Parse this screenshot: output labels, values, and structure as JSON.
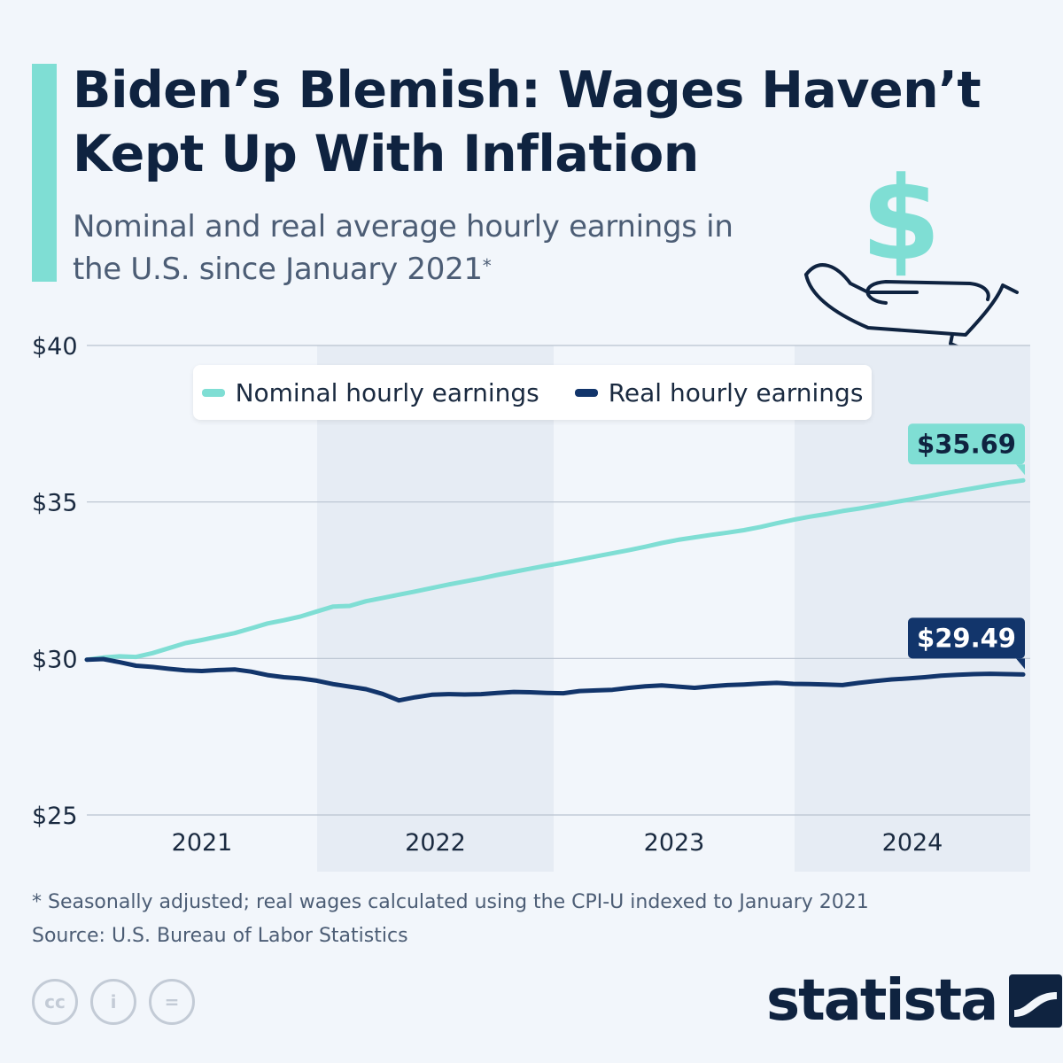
{
  "header": {
    "title": "Biden’s Blemish: Wages Haven’t Kept Up With Inflation",
    "subtitle": "Nominal and real average hourly earnings in the U.S. since January 2021",
    "subtitle_mark": "*"
  },
  "icon": "dollar-in-hand-icon",
  "colors": {
    "accent": "#7fded4",
    "nominal": "#7fded4",
    "real": "#12356b",
    "title": "#0f2340",
    "band": "#e6ecf4",
    "grid": "#b9c2cf"
  },
  "chart_data": {
    "type": "line",
    "title": "",
    "xlabel": "",
    "ylabel": "",
    "ylim": [
      25,
      40
    ],
    "yticks": [
      "$25",
      "$30",
      "$35",
      "$40"
    ],
    "ytick_values": [
      25,
      30,
      35,
      40
    ],
    "year_labels": [
      "2021",
      "2022",
      "2023",
      "2024"
    ],
    "grid": true,
    "legend_position": "top-center",
    "x_start": "2021-01",
    "x_end": "2024-11",
    "series": [
      {
        "name": "Nominal hourly earnings",
        "end_label": "$35.69",
        "values": [
          29.96,
          30.03,
          30.07,
          30.05,
          30.17,
          30.33,
          30.49,
          30.59,
          30.7,
          30.81,
          30.96,
          31.12,
          31.22,
          31.34,
          31.5,
          31.66,
          31.68,
          31.83,
          31.93,
          32.04,
          32.14,
          32.25,
          32.36,
          32.46,
          32.56,
          32.67,
          32.77,
          32.87,
          32.97,
          33.06,
          33.16,
          33.26,
          33.36,
          33.46,
          33.57,
          33.69,
          33.79,
          33.87,
          33.95,
          34.02,
          34.1,
          34.2,
          34.32,
          34.43,
          34.53,
          34.61,
          34.71,
          34.79,
          34.88,
          34.98,
          35.07,
          35.16,
          35.26,
          35.35,
          35.44,
          35.53,
          35.62,
          35.69
        ]
      },
      {
        "name": "Real hourly earnings",
        "end_label": "$29.49",
        "values": [
          29.96,
          29.98,
          29.88,
          29.77,
          29.73,
          29.67,
          29.62,
          29.6,
          29.63,
          29.65,
          29.58,
          29.47,
          29.4,
          29.36,
          29.29,
          29.18,
          29.1,
          29.02,
          28.87,
          28.66,
          28.76,
          28.84,
          28.86,
          28.85,
          28.86,
          28.9,
          28.93,
          28.92,
          28.9,
          28.89,
          28.96,
          28.98,
          29.0,
          29.06,
          29.11,
          29.14,
          29.1,
          29.06,
          29.11,
          29.15,
          29.17,
          29.2,
          29.22,
          29.19,
          29.18,
          29.17,
          29.15,
          29.22,
          29.28,
          29.33,
          29.36,
          29.4,
          29.45,
          29.48,
          29.5,
          29.51,
          29.5,
          29.49
        ]
      }
    ]
  },
  "footnote": {
    "note": "* Seasonally adjusted; real wages calculated using the CPI-U indexed to January 2021",
    "source": "Source: U.S. Bureau of Labor Statistics"
  },
  "license_icons": [
    "cc-icon",
    "attribution-icon",
    "no-derivatives-icon"
  ],
  "license_glyphs": [
    "cc",
    "i",
    "="
  ],
  "brand": {
    "name": "statista",
    "logo": "statista-logo-icon"
  }
}
